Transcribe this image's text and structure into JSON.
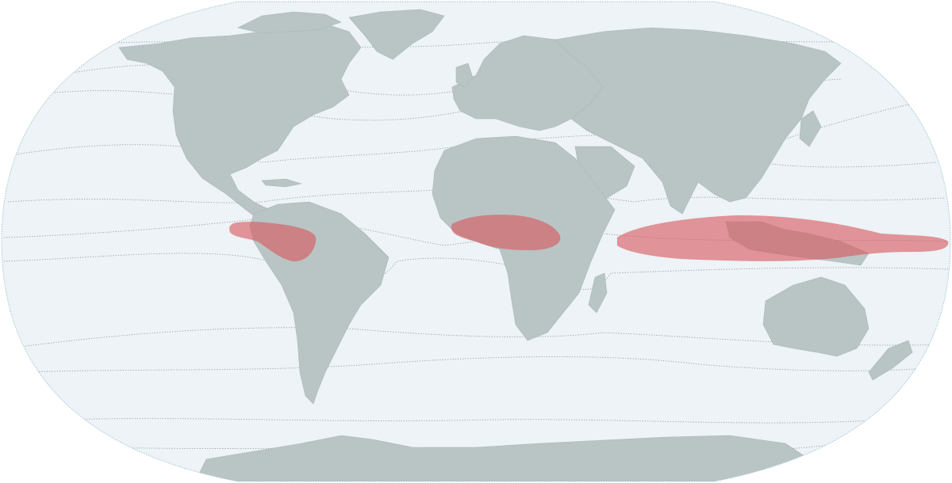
{
  "map": {
    "projection": "Robinson",
    "colors": {
      "ocean": "#edf3f6",
      "land": "#b9c4c5",
      "land_stroke": "#aab6b7",
      "outline": "#9fc4d4",
      "isoline": "#8f9a9c",
      "highlight": "#d9575d"
    },
    "highlight_regions": [
      "amazon-basin",
      "congo-basin",
      "maritime-continent"
    ],
    "isolines": {
      "style": "dotted"
    }
  }
}
